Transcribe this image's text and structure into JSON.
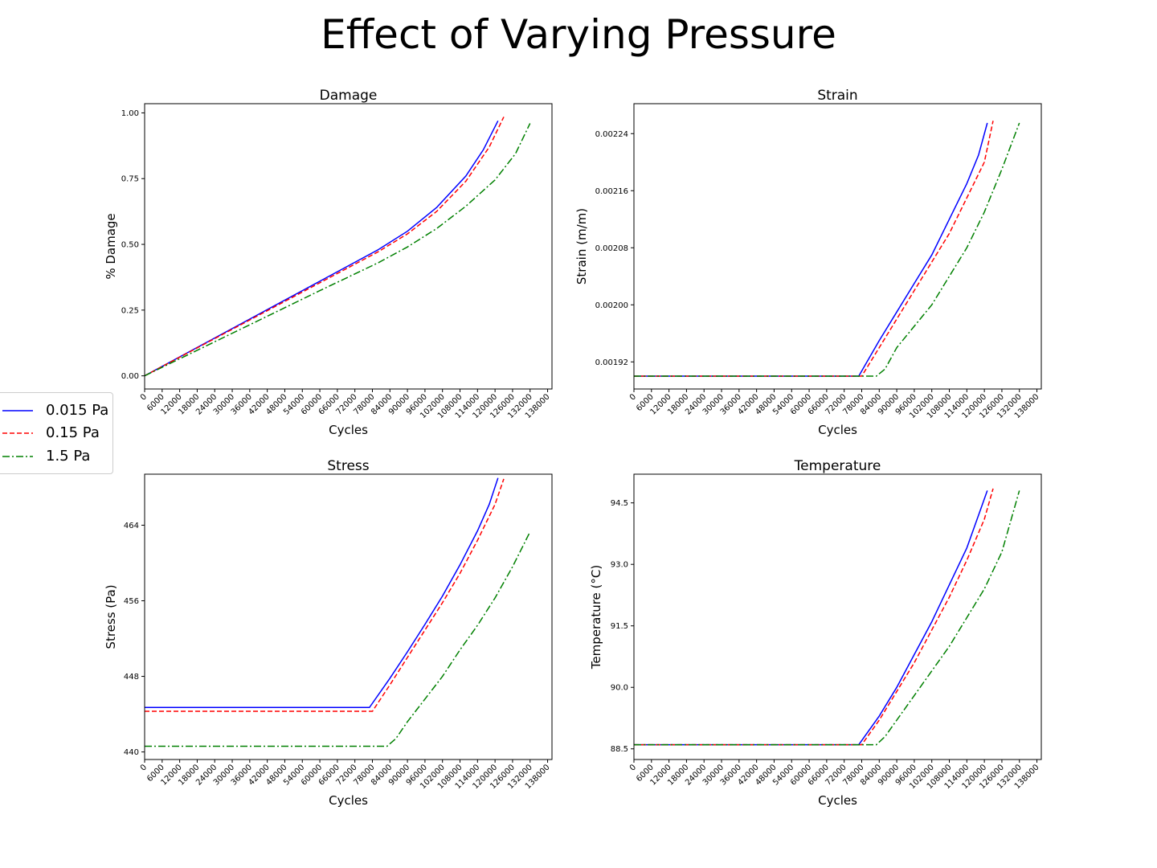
{
  "figure": {
    "title": "Effect of Varying Pressure"
  },
  "legend": {
    "placement": "left-middle",
    "entries": [
      {
        "label": "0.015 Pa",
        "color": "#0000ff",
        "dash": "solid"
      },
      {
        "label": "0.15 Pa",
        "color": "#ff0000",
        "dash": "dashed"
      },
      {
        "label": "1.5 Pa",
        "color": "#008000",
        "dash": "dashdot"
      }
    ]
  },
  "chart_data": [
    {
      "id": "damage",
      "type": "line",
      "title": "Damage",
      "xlabel": "Cycles",
      "ylabel": "% Damage",
      "xlim": [
        0,
        139500
      ],
      "ylim": [
        -0.05,
        1.035
      ],
      "xticks": [
        0,
        6000,
        12000,
        18000,
        24000,
        30000,
        36000,
        42000,
        48000,
        54000,
        60000,
        66000,
        72000,
        78000,
        84000,
        90000,
        96000,
        102000,
        108000,
        114000,
        120000,
        126000,
        132000,
        138000
      ],
      "yticks": [
        0.0,
        0.25,
        0.5,
        0.75,
        1.0
      ],
      "ytick_labels": [
        "0.00",
        "0.25",
        "0.50",
        "0.75",
        "1.00"
      ],
      "series": [
        {
          "name": "0.015 Pa",
          "x": [
            0,
            20000,
            40000,
            60000,
            80000,
            90000,
            100000,
            110000,
            116000,
            121000
          ],
          "y": [
            0,
            0.12,
            0.24,
            0.36,
            0.48,
            0.55,
            0.64,
            0.76,
            0.86,
            0.97
          ]
        },
        {
          "name": "0.15 Pa",
          "x": [
            0,
            20000,
            40000,
            60000,
            80000,
            90000,
            100000,
            110000,
            118000,
            123000
          ],
          "y": [
            0,
            0.118,
            0.236,
            0.354,
            0.472,
            0.54,
            0.625,
            0.74,
            0.87,
            0.985
          ]
        },
        {
          "name": "1.5 Pa",
          "x": [
            0,
            20000,
            40000,
            60000,
            80000,
            90000,
            100000,
            110000,
            120000,
            127000,
            132000
          ],
          "y": [
            0,
            0.108,
            0.216,
            0.324,
            0.43,
            0.49,
            0.56,
            0.645,
            0.745,
            0.845,
            0.96
          ]
        }
      ]
    },
    {
      "id": "strain",
      "type": "line",
      "title": "Strain",
      "xlabel": "Cycles",
      "ylabel": "Strain (m/m)",
      "xlim": [
        0,
        139500
      ],
      "ylim": [
        0.001882,
        0.002282
      ],
      "xticks": [
        0,
        6000,
        12000,
        18000,
        24000,
        30000,
        36000,
        42000,
        48000,
        54000,
        60000,
        66000,
        72000,
        78000,
        84000,
        90000,
        96000,
        102000,
        108000,
        114000,
        120000,
        126000,
        132000,
        138000
      ],
      "yticks": [
        0.00192,
        0.002,
        0.00208,
        0.00216,
        0.00224
      ],
      "ytick_labels": [
        "0.00192",
        "0.00200",
        "0.00208",
        "0.00216",
        "0.00224"
      ],
      "series": [
        {
          "name": "0.015 Pa",
          "x": [
            0,
            77000,
            84000,
            90000,
            96000,
            102000,
            108000,
            114000,
            118000,
            121000
          ],
          "y": [
            0.0019,
            0.0019,
            0.00195,
            0.00199,
            0.00203,
            0.00207,
            0.00212,
            0.00217,
            0.00221,
            0.002255
          ]
        },
        {
          "name": "0.15 Pa",
          "x": [
            0,
            78000,
            84000,
            90000,
            96000,
            102000,
            108000,
            114000,
            120000,
            123000
          ],
          "y": [
            0.0019,
            0.0019,
            0.00194,
            0.00198,
            0.00202,
            0.00206,
            0.0021,
            0.00215,
            0.0022,
            0.002258
          ]
        },
        {
          "name": "1.5 Pa",
          "x": [
            0,
            83000,
            86000,
            90000,
            96000,
            102000,
            108000,
            114000,
            120000,
            126000,
            132000
          ],
          "y": [
            0.0019,
            0.0019,
            0.00191,
            0.00194,
            0.00197,
            0.002,
            0.00204,
            0.00208,
            0.00213,
            0.00219,
            0.002255
          ]
        }
      ]
    },
    {
      "id": "stress",
      "type": "line",
      "title": "Stress",
      "xlabel": "Cycles",
      "ylabel": "Stress (Pa)",
      "xlim": [
        0,
        139500
      ],
      "ylim": [
        439.2,
        469.4
      ],
      "xticks": [
        0,
        6000,
        12000,
        18000,
        24000,
        30000,
        36000,
        42000,
        48000,
        54000,
        60000,
        66000,
        72000,
        78000,
        84000,
        90000,
        96000,
        102000,
        108000,
        114000,
        120000,
        126000,
        132000,
        138000
      ],
      "yticks": [
        440,
        448,
        456,
        464
      ],
      "ytick_labels": [
        "440",
        "448",
        "456",
        "464"
      ],
      "series": [
        {
          "name": "0.015 Pa",
          "x": [
            0,
            77000,
            84000,
            90000,
            96000,
            102000,
            108000,
            114000,
            118000,
            121000
          ],
          "y": [
            444.7,
            444.7,
            447.8,
            450.6,
            453.5,
            456.5,
            459.8,
            463.4,
            466.2,
            469.0
          ]
        },
        {
          "name": "0.15 Pa",
          "x": [
            0,
            78000,
            84000,
            90000,
            96000,
            102000,
            108000,
            114000,
            120000,
            123000
          ],
          "y": [
            444.3,
            444.3,
            447.1,
            450.0,
            452.9,
            455.8,
            458.9,
            462.4,
            466.2,
            468.9
          ]
        },
        {
          "name": "1.5 Pa",
          "x": [
            0,
            83000,
            86000,
            90000,
            96000,
            102000,
            108000,
            114000,
            120000,
            126000,
            132000
          ],
          "y": [
            440.6,
            440.6,
            441.4,
            443.2,
            445.6,
            448.0,
            450.8,
            453.4,
            456.3,
            459.6,
            463.3
          ]
        }
      ]
    },
    {
      "id": "temperature",
      "type": "line",
      "title": "Temperature",
      "xlabel": "Cycles",
      "ylabel": "Temperature (°C)",
      "xlim": [
        0,
        139500
      ],
      "ylim": [
        88.24,
        95.2
      ],
      "xticks": [
        0,
        6000,
        12000,
        18000,
        24000,
        30000,
        36000,
        42000,
        48000,
        54000,
        60000,
        66000,
        72000,
        78000,
        84000,
        90000,
        96000,
        102000,
        108000,
        114000,
        120000,
        126000,
        132000,
        138000
      ],
      "yticks": [
        88.5,
        90.0,
        91.5,
        93.0,
        94.5
      ],
      "ytick_labels": [
        "88.5",
        "90.0",
        "91.5",
        "93.0",
        "94.5"
      ],
      "series": [
        {
          "name": "0.015 Pa",
          "x": [
            0,
            77000,
            84000,
            90000,
            96000,
            102000,
            108000,
            114000,
            118000,
            121000
          ],
          "y": [
            88.6,
            88.6,
            89.3,
            90.0,
            90.8,
            91.6,
            92.5,
            93.4,
            94.2,
            94.8
          ]
        },
        {
          "name": "0.15 Pa",
          "x": [
            0,
            78000,
            84000,
            90000,
            96000,
            102000,
            108000,
            114000,
            120000,
            123000
          ],
          "y": [
            88.6,
            88.6,
            89.2,
            89.9,
            90.6,
            91.4,
            92.2,
            93.1,
            94.1,
            94.85
          ]
        },
        {
          "name": "1.5 Pa",
          "x": [
            0,
            83000,
            86000,
            90000,
            96000,
            102000,
            108000,
            114000,
            120000,
            126000,
            132000
          ],
          "y": [
            88.6,
            88.6,
            88.8,
            89.2,
            89.8,
            90.4,
            91.0,
            91.7,
            92.4,
            93.3,
            94.8
          ]
        }
      ]
    }
  ]
}
